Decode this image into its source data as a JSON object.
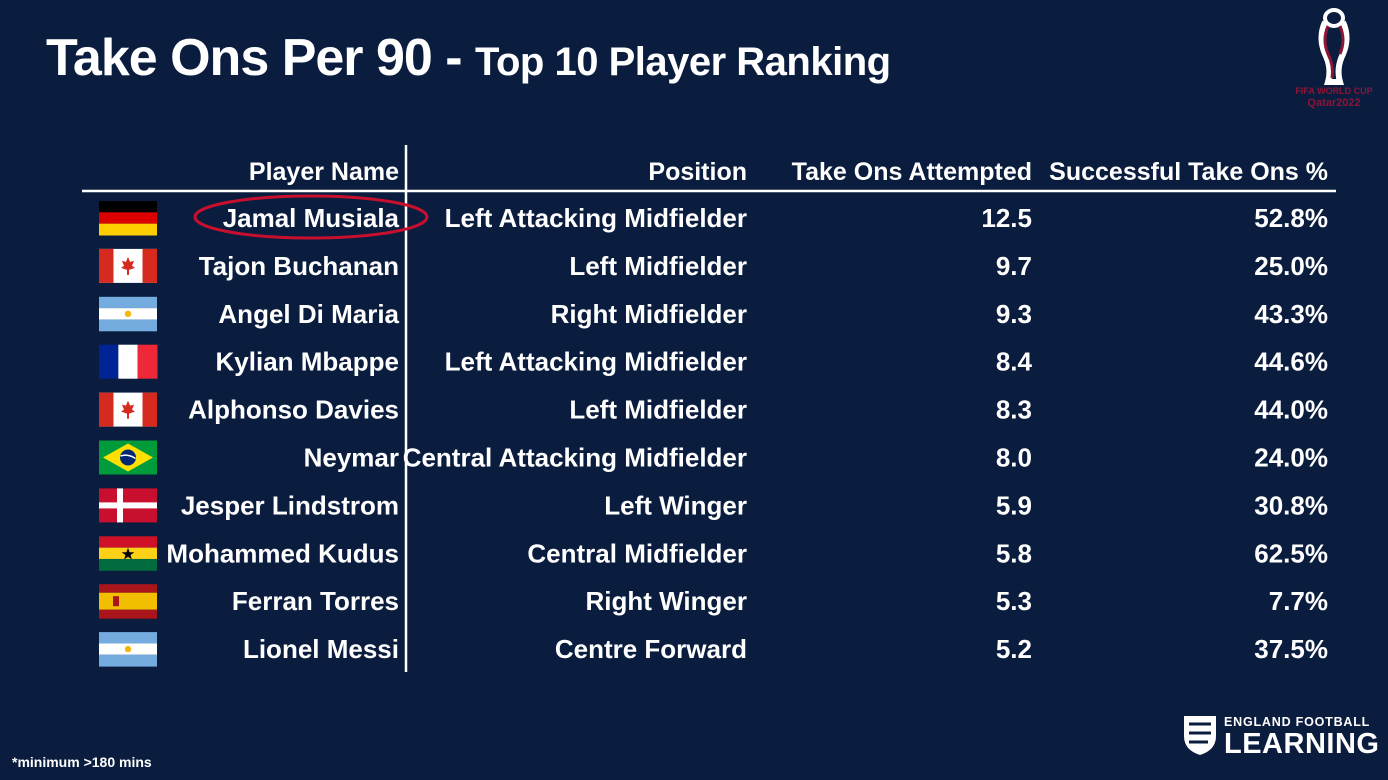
{
  "header": {
    "title_main": "Take Ons Per 90 - ",
    "title_sub": "Top 10 Player Ranking"
  },
  "logo": {
    "wc_line1": "FIFA WORLD CUP",
    "wc_line2": "Qatar2022",
    "efl_line1": "ENGLAND FOOTBALL",
    "efl_line2": "LEARNING"
  },
  "footnote": "*minimum >180 mins",
  "colors": {
    "background": "#0b1d3f",
    "text": "#ffffff",
    "highlight": "#c8102e",
    "qatar_maroon": "#8a1538"
  },
  "chart_data": {
    "type": "table",
    "title": "Take Ons Per 90 - Top 10 Player Ranking",
    "columns": [
      "Player Name",
      "Position",
      "Take Ons Attempted",
      "Successful Take Ons %"
    ],
    "highlighted_row": 0,
    "rows": [
      {
        "flag": "germany",
        "player": "Jamal Musiala",
        "position": "Left Attacking Midfielder",
        "attempted": "12.5",
        "success": "52.8%"
      },
      {
        "flag": "canada",
        "player": "Tajon Buchanan",
        "position": "Left Midfielder",
        "attempted": "9.7",
        "success": "25.0%"
      },
      {
        "flag": "argentina",
        "player": "Angel Di Maria",
        "position": "Right Midfielder",
        "attempted": "9.3",
        "success": "43.3%"
      },
      {
        "flag": "france",
        "player": "Kylian Mbappe",
        "position": "Left Attacking Midfielder",
        "attempted": "8.4",
        "success": "44.6%"
      },
      {
        "flag": "canada",
        "player": "Alphonso Davies",
        "position": "Left Midfielder",
        "attempted": "8.3",
        "success": "44.0%"
      },
      {
        "flag": "brazil",
        "player": "Neymar",
        "position": "Central Attacking Midfielder",
        "attempted": "8.0",
        "success": "24.0%"
      },
      {
        "flag": "denmark",
        "player": "Jesper Lindstrom",
        "position": "Left Winger",
        "attempted": "5.9",
        "success": "30.8%"
      },
      {
        "flag": "ghana",
        "player": "Mohammed Kudus",
        "position": "Central Midfielder",
        "attempted": "5.8",
        "success": "62.5%"
      },
      {
        "flag": "spain",
        "player": "Ferran Torres",
        "position": "Right Winger",
        "attempted": "5.3",
        "success": "7.7%"
      },
      {
        "flag": "argentina",
        "player": "Lionel Messi",
        "position": "Centre Forward",
        "attempted": "5.2",
        "success": "37.5%"
      }
    ]
  }
}
